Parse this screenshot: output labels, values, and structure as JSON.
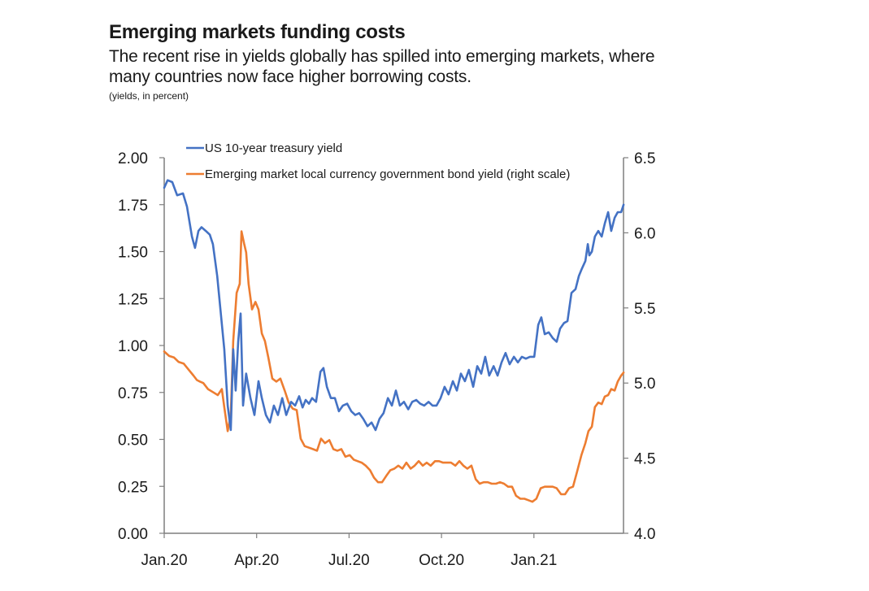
{
  "header": {
    "title": "Emerging markets funding costs",
    "subtitle": "The recent rise in yields globally has spilled into emerging markets, where many countries now face higher borrowing costs.",
    "units": "(yields, in percent)"
  },
  "colors": {
    "us": "#4472c4",
    "em": "#ed7d31",
    "axis": "#7f7f7f"
  },
  "chart_data": {
    "type": "line",
    "title": "Emerging markets funding costs",
    "subtitle": "The recent rise in yields globally has spilled into emerging markets, where many countries now face higher borrowing costs.",
    "units": "(yields, in percent)",
    "x_unit": "months since Jan 2020",
    "xlim": [
      0,
      14.9
    ],
    "x_ticks": [
      {
        "value": 0,
        "label": "Jan.20"
      },
      {
        "value": 3,
        "label": "Apr.20"
      },
      {
        "value": 6,
        "label": "Jul.20"
      },
      {
        "value": 9,
        "label": "Oct.20"
      },
      {
        "value": 12,
        "label": "Jan.21"
      }
    ],
    "y_left": {
      "lim": [
        0,
        2
      ],
      "ticks": [
        "0.00",
        "0.25",
        "0.50",
        "0.75",
        "1.00",
        "1.25",
        "1.50",
        "1.75",
        "2.00"
      ]
    },
    "y_right": {
      "lim": [
        4.0,
        6.5
      ],
      "ticks": [
        "4.0",
        "4.5",
        "5.0",
        "5.5",
        "6.0",
        "6.5"
      ]
    },
    "grid": false,
    "legend_position": "top",
    "series": [
      {
        "name": "US 10-year treasury yield",
        "axis": "left",
        "points": [
          [
            0,
            1.84
          ],
          [
            0.11,
            1.88
          ],
          [
            0.26,
            1.87
          ],
          [
            0.42,
            1.8
          ],
          [
            0.61,
            1.81
          ],
          [
            0.74,
            1.74
          ],
          [
            0.9,
            1.58
          ],
          [
            1.0,
            1.52
          ],
          [
            1.11,
            1.61
          ],
          [
            1.21,
            1.63
          ],
          [
            1.35,
            1.61
          ],
          [
            1.48,
            1.59
          ],
          [
            1.58,
            1.54
          ],
          [
            1.72,
            1.37
          ],
          [
            1.85,
            1.15
          ],
          [
            1.95,
            0.98
          ],
          [
            2.06,
            0.68
          ],
          [
            2.16,
            0.55
          ],
          [
            2.24,
            0.98
          ],
          [
            2.32,
            0.76
          ],
          [
            2.4,
            1.02
          ],
          [
            2.48,
            1.17
          ],
          [
            2.56,
            0.68
          ],
          [
            2.66,
            0.85
          ],
          [
            2.8,
            0.72
          ],
          [
            2.93,
            0.63
          ],
          [
            3.06,
            0.81
          ],
          [
            3.17,
            0.72
          ],
          [
            3.3,
            0.63
          ],
          [
            3.43,
            0.59
          ],
          [
            3.56,
            0.68
          ],
          [
            3.69,
            0.63
          ],
          [
            3.83,
            0.72
          ],
          [
            3.96,
            0.63
          ],
          [
            4.12,
            0.7
          ],
          [
            4.25,
            0.68
          ],
          [
            4.38,
            0.73
          ],
          [
            4.49,
            0.67
          ],
          [
            4.59,
            0.71
          ],
          [
            4.7,
            0.69
          ],
          [
            4.8,
            0.72
          ],
          [
            4.93,
            0.7
          ],
          [
            5.07,
            0.86
          ],
          [
            5.17,
            0.88
          ],
          [
            5.28,
            0.78
          ],
          [
            5.41,
            0.72
          ],
          [
            5.54,
            0.72
          ],
          [
            5.67,
            0.65
          ],
          [
            5.8,
            0.68
          ],
          [
            5.94,
            0.69
          ],
          [
            6.07,
            0.65
          ],
          [
            6.2,
            0.63
          ],
          [
            6.33,
            0.64
          ],
          [
            6.46,
            0.61
          ],
          [
            6.6,
            0.57
          ],
          [
            6.73,
            0.59
          ],
          [
            6.86,
            0.55
          ],
          [
            6.99,
            0.61
          ],
          [
            7.12,
            0.64
          ],
          [
            7.26,
            0.72
          ],
          [
            7.39,
            0.68
          ],
          [
            7.52,
            0.76
          ],
          [
            7.65,
            0.68
          ],
          [
            7.78,
            0.7
          ],
          [
            7.92,
            0.66
          ],
          [
            8.05,
            0.7
          ],
          [
            8.18,
            0.71
          ],
          [
            8.31,
            0.69
          ],
          [
            8.44,
            0.68
          ],
          [
            8.58,
            0.7
          ],
          [
            8.71,
            0.68
          ],
          [
            8.84,
            0.68
          ],
          [
            8.97,
            0.72
          ],
          [
            9.1,
            0.78
          ],
          [
            9.23,
            0.74
          ],
          [
            9.37,
            0.81
          ],
          [
            9.5,
            0.76
          ],
          [
            9.63,
            0.85
          ],
          [
            9.76,
            0.81
          ],
          [
            9.89,
            0.87
          ],
          [
            10.03,
            0.78
          ],
          [
            10.16,
            0.89
          ],
          [
            10.29,
            0.85
          ],
          [
            10.42,
            0.94
          ],
          [
            10.55,
            0.84
          ],
          [
            10.69,
            0.89
          ],
          [
            10.82,
            0.84
          ],
          [
            10.95,
            0.91
          ],
          [
            11.08,
            0.96
          ],
          [
            11.21,
            0.9
          ],
          [
            11.35,
            0.94
          ],
          [
            11.48,
            0.91
          ],
          [
            11.61,
            0.94
          ],
          [
            11.74,
            0.93
          ],
          [
            11.87,
            0.94
          ],
          [
            12.01,
            0.94
          ],
          [
            12.14,
            1.11
          ],
          [
            12.24,
            1.15
          ],
          [
            12.35,
            1.06
          ],
          [
            12.48,
            1.07
          ],
          [
            12.61,
            1.04
          ],
          [
            12.74,
            1.02
          ],
          [
            12.85,
            1.09
          ],
          [
            12.98,
            1.12
          ],
          [
            13.09,
            1.13
          ],
          [
            13.22,
            1.28
          ],
          [
            13.35,
            1.3
          ],
          [
            13.46,
            1.37
          ],
          [
            13.56,
            1.41
          ],
          [
            13.67,
            1.45
          ],
          [
            13.75,
            1.54
          ],
          [
            13.8,
            1.48
          ],
          [
            13.88,
            1.5
          ],
          [
            13.98,
            1.58
          ],
          [
            14.09,
            1.61
          ],
          [
            14.2,
            1.58
          ],
          [
            14.3,
            1.65
          ],
          [
            14.41,
            1.71
          ],
          [
            14.51,
            1.61
          ],
          [
            14.62,
            1.68
          ],
          [
            14.72,
            1.71
          ],
          [
            14.83,
            1.71
          ],
          [
            14.91,
            1.75
          ]
        ]
      },
      {
        "name": "Emerging market local currency government bond yield (right scale)",
        "axis": "right",
        "points": [
          [
            0,
            5.21
          ],
          [
            0.16,
            5.18
          ],
          [
            0.32,
            5.17
          ],
          [
            0.47,
            5.14
          ],
          [
            0.63,
            5.13
          ],
          [
            0.79,
            5.09
          ],
          [
            0.95,
            5.05
          ],
          [
            1.06,
            5.02
          ],
          [
            1.16,
            5.01
          ],
          [
            1.27,
            5.0
          ],
          [
            1.42,
            4.96
          ],
          [
            1.58,
            4.94
          ],
          [
            1.74,
            4.92
          ],
          [
            1.87,
            4.96
          ],
          [
            1.95,
            4.84
          ],
          [
            2.06,
            4.68
          ],
          [
            2.16,
            4.79
          ],
          [
            2.24,
            5.28
          ],
          [
            2.35,
            5.6
          ],
          [
            2.45,
            5.66
          ],
          [
            2.51,
            6.01
          ],
          [
            2.59,
            5.93
          ],
          [
            2.66,
            5.87
          ],
          [
            2.74,
            5.66
          ],
          [
            2.85,
            5.49
          ],
          [
            2.96,
            5.54
          ],
          [
            3.06,
            5.49
          ],
          [
            3.17,
            5.33
          ],
          [
            3.27,
            5.28
          ],
          [
            3.38,
            5.17
          ],
          [
            3.51,
            5.03
          ],
          [
            3.64,
            5.01
          ],
          [
            3.77,
            5.03
          ],
          [
            3.91,
            4.95
          ],
          [
            4.04,
            4.87
          ],
          [
            4.17,
            4.83
          ],
          [
            4.3,
            4.82
          ],
          [
            4.43,
            4.63
          ],
          [
            4.56,
            4.58
          ],
          [
            4.7,
            4.57
          ],
          [
            4.83,
            4.56
          ],
          [
            4.96,
            4.55
          ],
          [
            5.09,
            4.63
          ],
          [
            5.22,
            4.6
          ],
          [
            5.36,
            4.62
          ],
          [
            5.49,
            4.56
          ],
          [
            5.62,
            4.55
          ],
          [
            5.75,
            4.56
          ],
          [
            5.88,
            4.51
          ],
          [
            6.02,
            4.52
          ],
          [
            6.15,
            4.49
          ],
          [
            6.28,
            4.48
          ],
          [
            6.41,
            4.47
          ],
          [
            6.54,
            4.45
          ],
          [
            6.68,
            4.42
          ],
          [
            6.81,
            4.37
          ],
          [
            6.94,
            4.34
          ],
          [
            7.07,
            4.34
          ],
          [
            7.2,
            4.38
          ],
          [
            7.34,
            4.42
          ],
          [
            7.47,
            4.43
          ],
          [
            7.6,
            4.45
          ],
          [
            7.73,
            4.43
          ],
          [
            7.86,
            4.47
          ],
          [
            8.0,
            4.43
          ],
          [
            8.13,
            4.45
          ],
          [
            8.26,
            4.48
          ],
          [
            8.39,
            4.45
          ],
          [
            8.52,
            4.47
          ],
          [
            8.65,
            4.45
          ],
          [
            8.79,
            4.48
          ],
          [
            8.92,
            4.48
          ],
          [
            9.05,
            4.47
          ],
          [
            9.18,
            4.47
          ],
          [
            9.31,
            4.47
          ],
          [
            9.45,
            4.45
          ],
          [
            9.58,
            4.48
          ],
          [
            9.71,
            4.45
          ],
          [
            9.84,
            4.43
          ],
          [
            9.97,
            4.45
          ],
          [
            10.11,
            4.36
          ],
          [
            10.24,
            4.33
          ],
          [
            10.37,
            4.34
          ],
          [
            10.5,
            4.34
          ],
          [
            10.63,
            4.33
          ],
          [
            10.77,
            4.33
          ],
          [
            10.9,
            4.34
          ],
          [
            11.03,
            4.33
          ],
          [
            11.16,
            4.31
          ],
          [
            11.29,
            4.31
          ],
          [
            11.42,
            4.25
          ],
          [
            11.56,
            4.23
          ],
          [
            11.69,
            4.23
          ],
          [
            11.82,
            4.22
          ],
          [
            11.95,
            4.21
          ],
          [
            12.08,
            4.23
          ],
          [
            12.22,
            4.3
          ],
          [
            12.35,
            4.31
          ],
          [
            12.48,
            4.31
          ],
          [
            12.61,
            4.31
          ],
          [
            12.74,
            4.3
          ],
          [
            12.88,
            4.26
          ],
          [
            13.01,
            4.26
          ],
          [
            13.14,
            4.3
          ],
          [
            13.27,
            4.31
          ],
          [
            13.4,
            4.41
          ],
          [
            13.54,
            4.52
          ],
          [
            13.67,
            4.6
          ],
          [
            13.77,
            4.68
          ],
          [
            13.88,
            4.71
          ],
          [
            13.98,
            4.84
          ],
          [
            14.09,
            4.87
          ],
          [
            14.2,
            4.86
          ],
          [
            14.3,
            4.91
          ],
          [
            14.41,
            4.92
          ],
          [
            14.51,
            4.96
          ],
          [
            14.62,
            4.95
          ],
          [
            14.72,
            5.01
          ],
          [
            14.83,
            5.05
          ],
          [
            14.91,
            5.07
          ]
        ]
      }
    ]
  }
}
